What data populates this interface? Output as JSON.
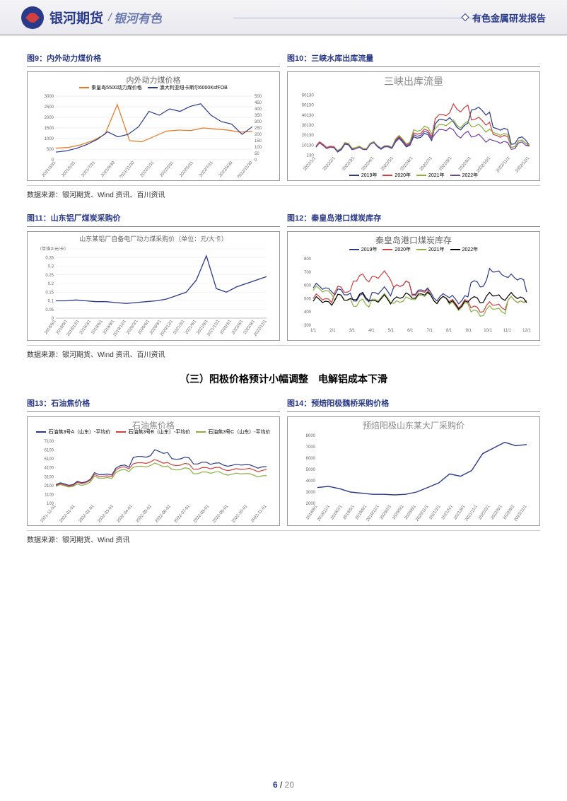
{
  "header": {
    "brand_main": "银河期货",
    "brand_separator": "/",
    "brand_sub": "银河有色",
    "report_type": "有色金属研发报告"
  },
  "section_heading": "（三）阳极价格预计小幅调整　电解铝成本下滑",
  "charts": {
    "c9": {
      "label": "图9：内外动力煤价格",
      "title": "内外动力煤价格",
      "type": "line",
      "series": [
        {
          "name": "秦皇岛5500动力煤价格",
          "color": "#e87722"
        },
        {
          "name": "澳大利亚纽卡斯尔6000KsfFOB",
          "color": "#2a3a8a"
        }
      ],
      "y_left": {
        "min": 0,
        "max": 3000,
        "step": 500
      },
      "y_right": {
        "min": 0,
        "max": 500,
        "step": 50
      },
      "x_labels": [
        "2021/3/31",
        "2021/5/31",
        "2021/7/31",
        "2021/9/30",
        "2021/11/30",
        "2022/1/31",
        "2022/3/31",
        "2022/5/31",
        "2022/7/31",
        "2022/9/30",
        "2022/11/30"
      ],
      "data1": [
        550,
        580,
        700,
        900,
        1200,
        2600,
        900,
        850,
        1100,
        1350,
        1400,
        1380,
        1500,
        1450,
        1400,
        1300,
        1350
      ],
      "data2": [
        60,
        70,
        90,
        120,
        160,
        220,
        180,
        200,
        260,
        380,
        350,
        400,
        380,
        420,
        440,
        350,
        300,
        280,
        200,
        260
      ]
    },
    "c10": {
      "label": "图10：三峡水库出库流量",
      "title": "三峡出库流量",
      "type": "line",
      "series": [
        {
          "name": "2019年",
          "color": "#2a3a8a"
        },
        {
          "name": "2020年",
          "color": "#d04040"
        },
        {
          "name": "2021年",
          "color": "#8ab040"
        },
        {
          "name": "2022年",
          "color": "#7040a0"
        }
      ],
      "y": {
        "min": 130,
        "max": 60130,
        "step": 10000
      },
      "x_labels": [
        "2022/1/1",
        "2022/2/1",
        "2022/3/1",
        "2022/4/1",
        "2022/5/1",
        "2022/6/1",
        "2022/7/1",
        "2022/8/1",
        "2022/9/1",
        "2022/10/1",
        "2022/11/1",
        "2022/12/1"
      ]
    },
    "c11": {
      "label": "图11：山东铝厂煤炭采购价",
      "title": "山东某铝厂自备电厂动力煤采购价（单位：元/大卡）",
      "unit": "（单位：元/卡）",
      "type": "line",
      "series": [
        {
          "name": "",
          "color": "#2a3a8a"
        }
      ],
      "y": {
        "min": 0,
        "max": 0.4,
        "step": 0.05
      },
      "x_labels": [
        "2018/6/1",
        "2018/9/1",
        "2018/12/1",
        "2019/3/1",
        "2019/6/1",
        "2019/9/1",
        "2019/12/1",
        "2020/3/1",
        "2020/6/1",
        "2020/9/1",
        "2020/12/1",
        "2021/3/1",
        "2021/6/1",
        "2021/9/1",
        "2021/12/1",
        "2022/3/1",
        "2022/6/1",
        "2022/9/1",
        "2022/12/1"
      ],
      "data": [
        0.1,
        0.1,
        0.105,
        0.1,
        0.095,
        0.095,
        0.09,
        0.085,
        0.09,
        0.095,
        0.1,
        0.11,
        0.13,
        0.15,
        0.22,
        0.36,
        0.17,
        0.15,
        0.18,
        0.2,
        0.22,
        0.24
      ]
    },
    "c12": {
      "label": "图12：秦皇岛港口煤炭库存",
      "title": "秦皇岛港口煤炭库存",
      "type": "line",
      "series": [
        {
          "name": "2019年",
          "color": "#2a3a8a"
        },
        {
          "name": "2020年",
          "color": "#d04040"
        },
        {
          "name": "2021年",
          "color": "#8ab040"
        },
        {
          "name": "2022年",
          "color": "#000000"
        }
      ],
      "y": {
        "min": 300,
        "max": 800,
        "step": 100
      },
      "x_labels": [
        "1/1",
        "2/1",
        "3/1",
        "4/1",
        "5/1",
        "6/1",
        "7/1",
        "8/1",
        "9/1",
        "10/1",
        "11/1",
        "12/1"
      ]
    },
    "c13": {
      "label": "图13：石油焦价格",
      "title": "石油焦价格",
      "type": "line",
      "series": [
        {
          "name": "石油焦3号A（山东）-平均价",
          "color": "#2a3a8a"
        },
        {
          "name": "石油焦3号B（山东）-平均价",
          "color": "#d04040"
        },
        {
          "name": "石油焦3号C（山东）-平均价",
          "color": "#8ab040"
        }
      ],
      "y": {
        "min": 100,
        "max": 7100,
        "step": 1000
      },
      "x_labels": [
        "2021-12-01",
        "2022-01-01",
        "2022-02-01",
        "2022-03-01",
        "2022-04-01",
        "2022-05-01",
        "2022-06-01",
        "2022-07-01",
        "2022-08-01",
        "2022-09-01",
        "2022-10-01",
        "2022-11-01"
      ]
    },
    "c14": {
      "label": "图14：预焙阳极魏桥采购价格",
      "title": "预焙阳极山东某大厂采购价",
      "type": "line",
      "series": [
        {
          "name": "",
          "color": "#2a3a8a"
        }
      ],
      "y": {
        "min": 2000,
        "max": 8000,
        "step": 1000
      },
      "x_labels": [
        "2018/8/1",
        "2018/11/1",
        "2019/2/1",
        "2019/5/1",
        "2019/8/1",
        "2019/11/1",
        "2020/2/1",
        "2020/5/1",
        "2020/8/1",
        "2020/11/1",
        "2021/2/1",
        "2021/5/1",
        "2021/8/1",
        "2021/11/1",
        "2022/2/1",
        "2022/5/1",
        "2022/8/1",
        "2022/11/1"
      ],
      "data": [
        3400,
        3500,
        3300,
        3000,
        2900,
        2800,
        2800,
        2750,
        2800,
        3000,
        3400,
        3800,
        4600,
        4400,
        4900,
        6400,
        6900,
        7400,
        7100,
        7200
      ]
    }
  },
  "sources": {
    "row1": "数据来源：银河期货、Wind 资讯、百川资讯",
    "row2": "数据来源：银河期货、Wind 资讯、百川资讯",
    "row3": "数据来源：银河期货、Wind 资讯"
  },
  "page": {
    "current": "6",
    "separator": "/",
    "total": "20"
  },
  "colors": {
    "brand_blue": "#2a3a8a",
    "accent_red": "#d04040",
    "grid": "#dddddd"
  }
}
